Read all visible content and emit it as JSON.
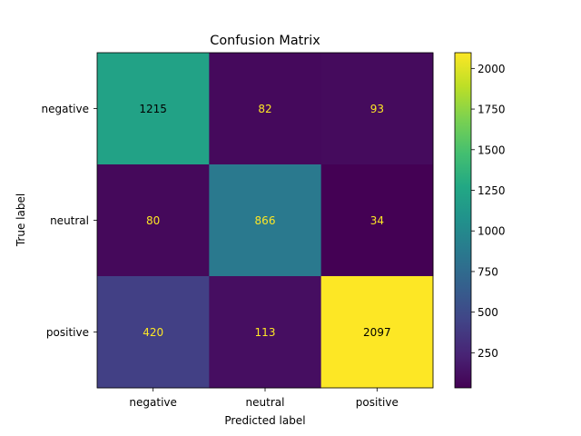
{
  "chart_data": {
    "type": "heatmap",
    "title": "Confusion Matrix",
    "xlabel": "Predicted label",
    "ylabel": "True label",
    "x_categories": [
      "negative",
      "neutral",
      "positive"
    ],
    "y_categories": [
      "negative",
      "neutral",
      "positive"
    ],
    "values": [
      [
        1215,
        82,
        93
      ],
      [
        80,
        866,
        34
      ],
      [
        420,
        113,
        2097
      ]
    ],
    "colormap": "viridis",
    "color_range": [
      34,
      2097
    ],
    "colorbar_ticks": [
      "250",
      "500",
      "750",
      "1000",
      "1250",
      "1500",
      "1750",
      "2000"
    ],
    "colorbar_tick_values": [
      250,
      500,
      750,
      1000,
      1250,
      1500,
      1750,
      2000
    ],
    "text_color_dark": "#000000",
    "text_color_light": "#fde725"
  }
}
